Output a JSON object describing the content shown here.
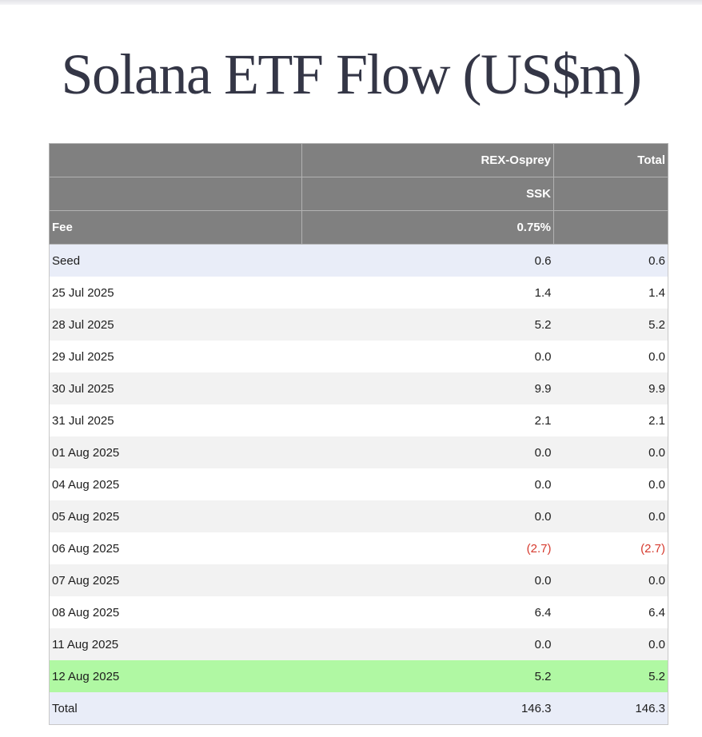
{
  "title": "Solana ETF Flow (US$m)",
  "header": {
    "row1": [
      "",
      "REX-Osprey",
      "Total"
    ],
    "row2": [
      "",
      "SSK",
      ""
    ],
    "row3": [
      "Fee",
      "0.75%",
      ""
    ]
  },
  "rows": [
    {
      "date": "Seed",
      "ssk": "0.6",
      "total": "0.6"
    },
    {
      "date": "25 Jul 2025",
      "ssk": "1.4",
      "total": "1.4"
    },
    {
      "date": "28 Jul 2025",
      "ssk": "5.2",
      "total": "5.2"
    },
    {
      "date": "29 Jul 2025",
      "ssk": "0.0",
      "total": "0.0"
    },
    {
      "date": "30 Jul 2025",
      "ssk": "9.9",
      "total": "9.9"
    },
    {
      "date": "31 Jul 2025",
      "ssk": "2.1",
      "total": "2.1"
    },
    {
      "date": "01 Aug 2025",
      "ssk": "0.0",
      "total": "0.0"
    },
    {
      "date": "04 Aug 2025",
      "ssk": "0.0",
      "total": "0.0"
    },
    {
      "date": "05 Aug 2025",
      "ssk": "0.0",
      "total": "0.0"
    },
    {
      "date": "06 Aug 2025",
      "ssk": "(2.7)",
      "total": "(2.7)"
    },
    {
      "date": "07 Aug 2025",
      "ssk": "0.0",
      "total": "0.0"
    },
    {
      "date": "08 Aug 2025",
      "ssk": "6.4",
      "total": "6.4"
    },
    {
      "date": "11 Aug 2025",
      "ssk": "0.0",
      "total": "0.0"
    },
    {
      "date": "12 Aug 2025",
      "ssk": "5.2",
      "total": "5.2"
    },
    {
      "date": "Total",
      "ssk": "146.3",
      "total": "146.3"
    }
  ]
}
